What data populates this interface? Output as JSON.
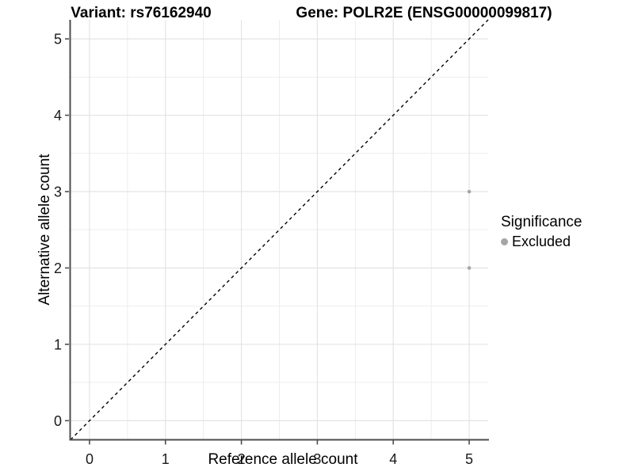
{
  "chart_data": {
    "type": "scatter",
    "title_left": "Variant: rs76162940",
    "title_right": "Gene: POLR2E (ENSG00000099817)",
    "xlabel": "Reference allele count",
    "ylabel": "Alternative allele count",
    "xlim": [
      -0.25,
      5.25
    ],
    "ylim": [
      -0.25,
      5.25
    ],
    "xticks": [
      0,
      1,
      2,
      3,
      4,
      5
    ],
    "yticks": [
      0,
      1,
      2,
      3,
      4,
      5
    ],
    "grid": {
      "major_step": 1,
      "minor_step": 0.5,
      "major_color": "#e3e3e3",
      "minor_color": "#ededed"
    },
    "series": [
      {
        "name": "Excluded",
        "color": "#a6a6a6",
        "points": [
          {
            "x": 5,
            "y": 3
          },
          {
            "x": 5,
            "y": 2
          }
        ]
      }
    ],
    "reference_line": {
      "kind": "identity y=x",
      "style": "dashed",
      "color": "#000000"
    },
    "legend": {
      "title": "Significance",
      "position": "right",
      "entries": [
        {
          "label": "Excluded",
          "color": "#a6a6a6"
        }
      ]
    },
    "axis_color": "#4d4d4d",
    "tick_label_color": "#1a1a1a",
    "point_radius": 2.3
  }
}
